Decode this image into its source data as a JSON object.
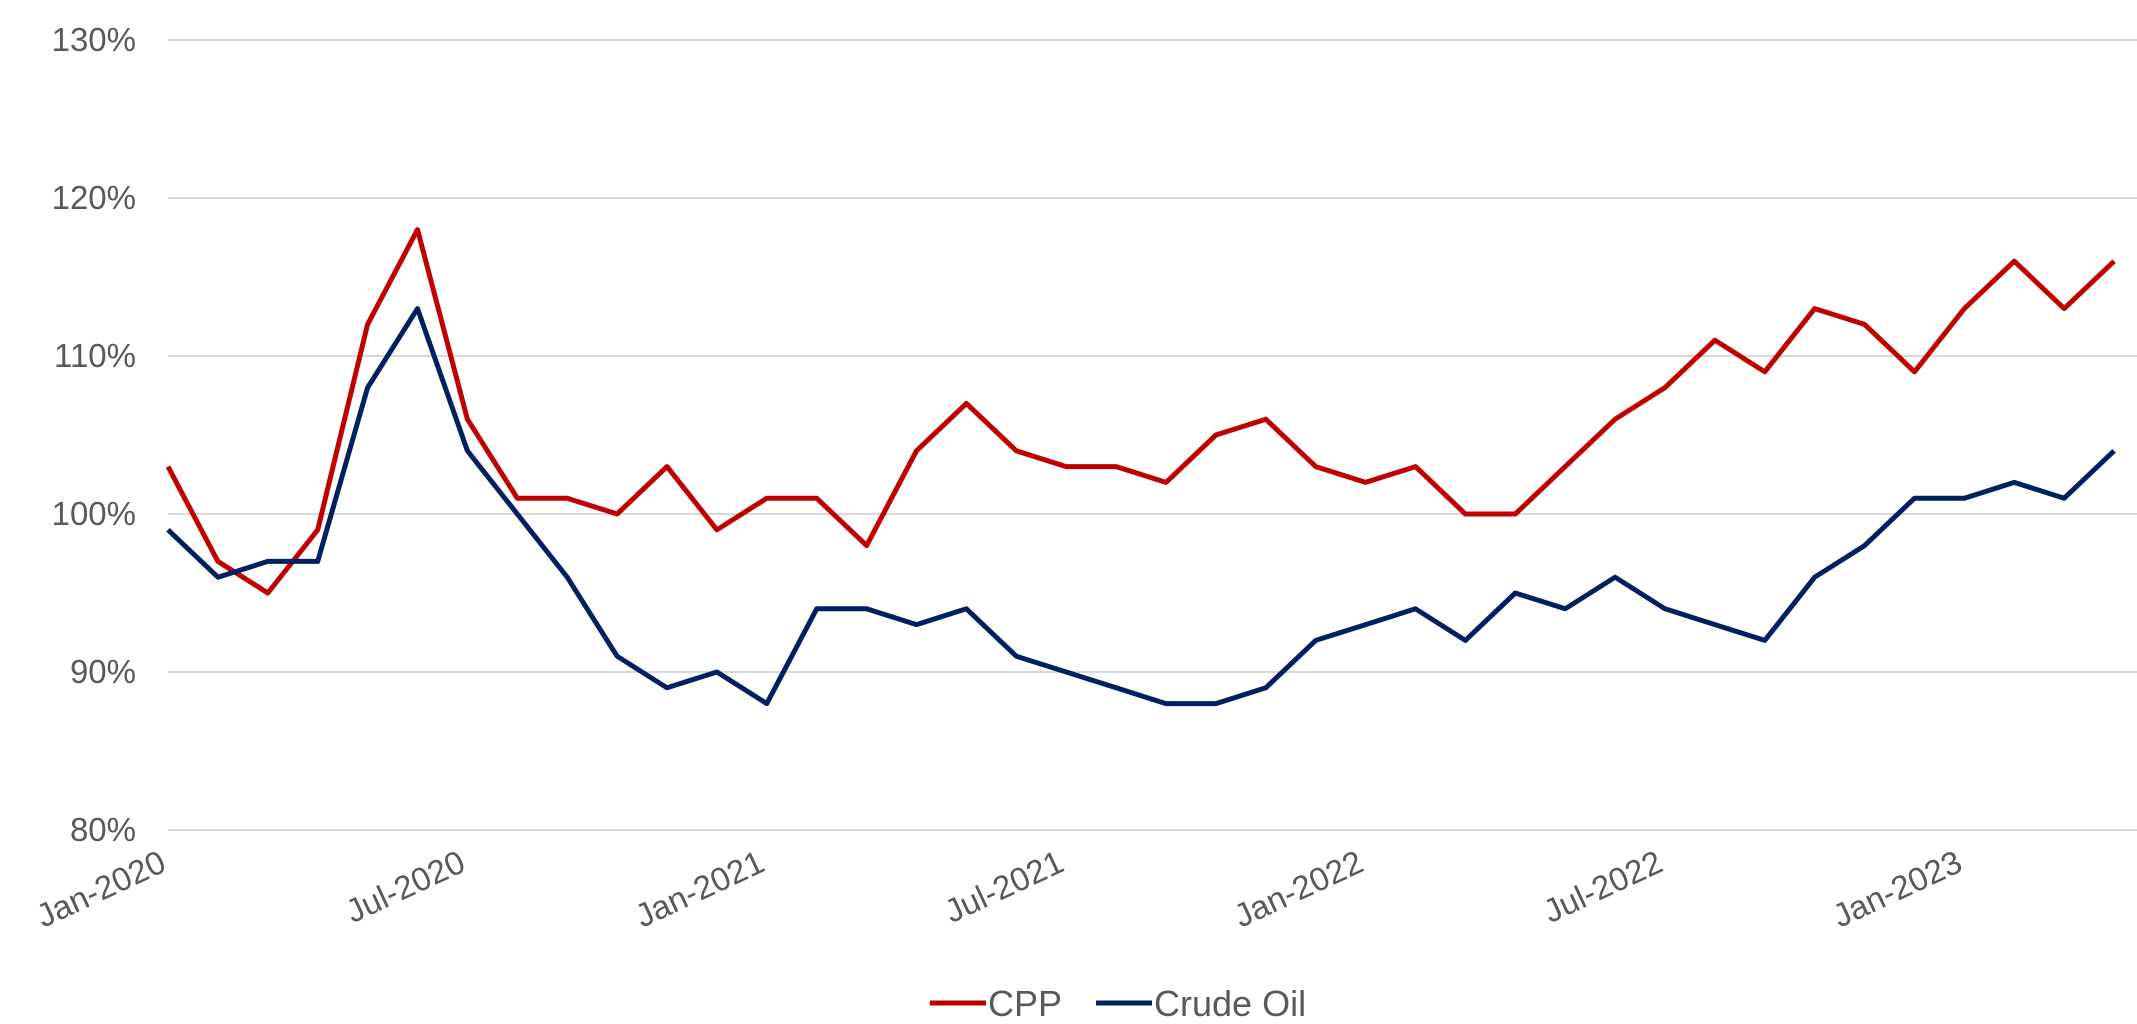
{
  "chart_data": {
    "type": "line",
    "x": [
      "Jan-2020",
      "Feb-2020",
      "Mar-2020",
      "Apr-2020",
      "May-2020",
      "Jun-2020",
      "Jul-2020",
      "Aug-2020",
      "Sep-2020",
      "Oct-2020",
      "Nov-2020",
      "Dec-2020",
      "Jan-2021",
      "Feb-2021",
      "Mar-2021",
      "Apr-2021",
      "May-2021",
      "Jun-2021",
      "Jul-2021",
      "Aug-2021",
      "Sep-2021",
      "Oct-2021",
      "Nov-2021",
      "Dec-2021",
      "Jan-2022",
      "Feb-2022",
      "Mar-2022",
      "Apr-2022",
      "May-2022",
      "Jun-2022",
      "Jul-2022",
      "Aug-2022",
      "Sep-2022",
      "Oct-2022",
      "Nov-2022",
      "Dec-2022",
      "Jan-2023",
      "Feb-2023",
      "Mar-2023",
      "Apr-2023"
    ],
    "series": [
      {
        "name": "CPP",
        "color": "#c00000",
        "values": [
          103,
          97,
          95,
          99,
          112,
          118,
          106,
          101,
          101,
          100,
          103,
          99,
          101,
          101,
          98,
          104,
          107,
          104,
          103,
          103,
          102,
          105,
          106,
          103,
          102,
          103,
          100,
          100,
          103,
          106,
          108,
          111,
          109,
          113,
          112,
          109,
          113,
          116,
          113,
          116
        ]
      },
      {
        "name": "Crude Oil",
        "color": "#002060",
        "values": [
          99,
          96,
          97,
          97,
          108,
          113,
          104,
          100,
          96,
          91,
          89,
          90,
          88,
          94,
          94,
          93,
          94,
          91,
          90,
          89,
          88,
          88,
          89,
          92,
          93,
          94,
          92,
          95,
          94,
          96,
          94,
          93,
          92,
          96,
          98,
          101,
          101,
          102,
          101,
          104
        ]
      }
    ],
    "xticks": [
      "Jan-2020",
      "Jul-2020",
      "Jan-2021",
      "Jul-2021",
      "Jan-2022",
      "Jul-2022",
      "Jan-2023"
    ],
    "ylim": [
      80,
      130
    ],
    "yticks": [
      {
        "value": 80,
        "label": "80%"
      },
      {
        "value": 90,
        "label": "90%"
      },
      {
        "value": 100,
        "label": "100%"
      },
      {
        "value": 110,
        "label": "110%"
      },
      {
        "value": 120,
        "label": "120%"
      },
      {
        "value": 130,
        "label": "130%"
      }
    ],
    "grid": true,
    "legend": "bottom"
  }
}
